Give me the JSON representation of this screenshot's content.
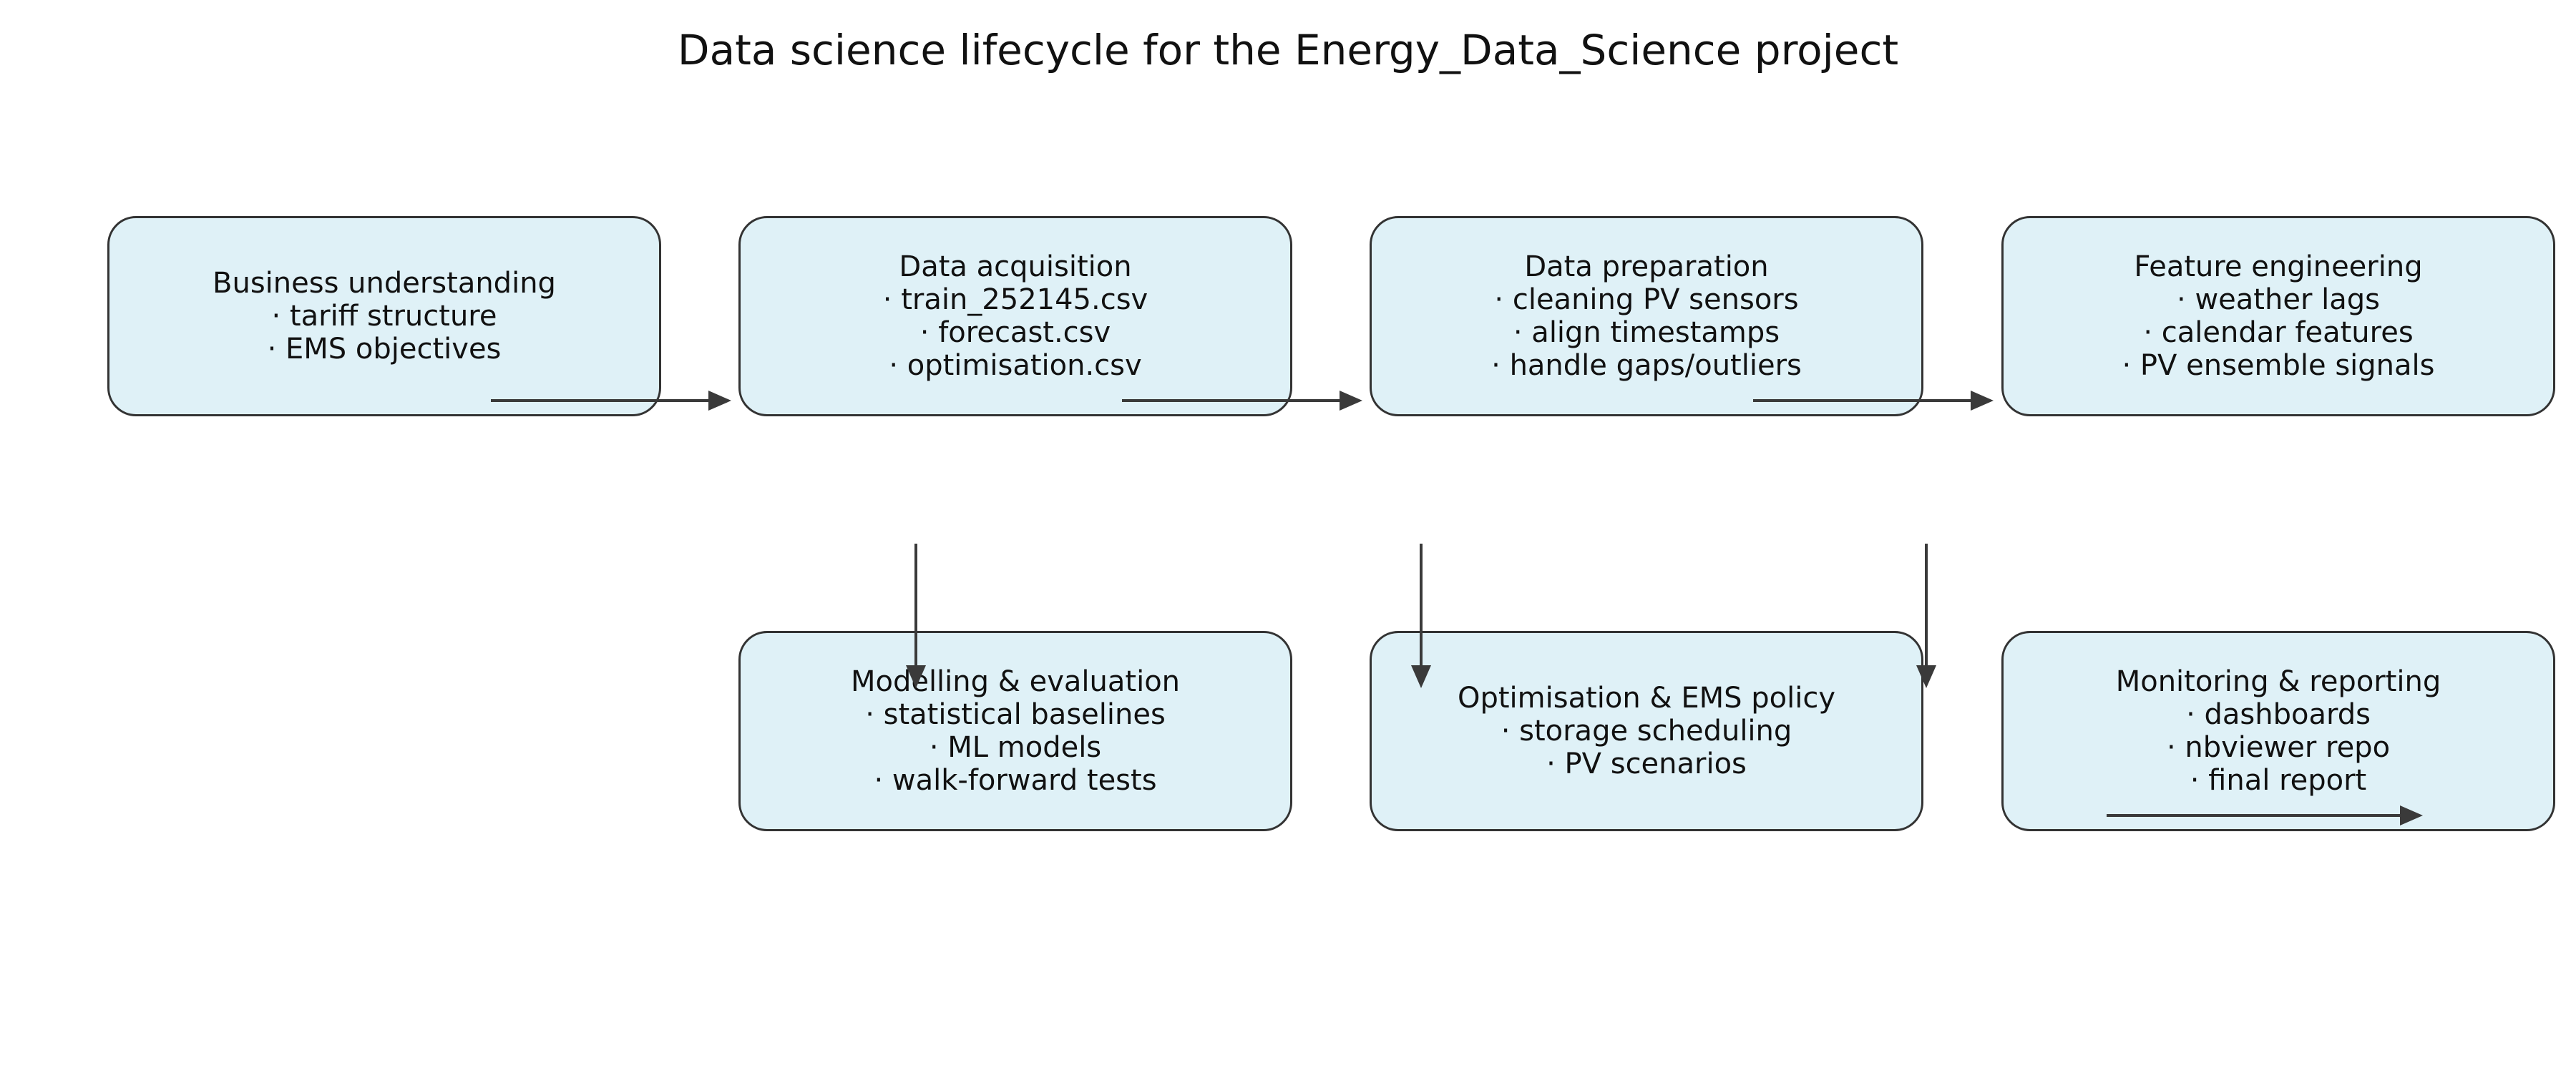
{
  "title": "Data science lifecycle for the Energy_Data_Science project",
  "colors": {
    "box_fill": "#dff1f7",
    "box_border": "#333333",
    "arrow": "#3a3a3a",
    "text": "#111111",
    "background": "#ffffff"
  },
  "stages": [
    {
      "title": "Business understanding",
      "points": [
        "· tariff structure",
        "· EMS objectives"
      ]
    },
    {
      "title": "Data acquisition",
      "points": [
        "· train_252145.csv",
        "· forecast.csv",
        "· optimisation.csv"
      ]
    },
    {
      "title": "Data preparation",
      "points": [
        "· cleaning PV sensors",
        "· align timestamps",
        "· handle gaps/outliers"
      ]
    },
    {
      "title": "Feature engineering",
      "points": [
        "· weather lags",
        "· calendar features",
        "· PV ensemble signals"
      ]
    },
    {
      "title": "Modelling & evaluation",
      "points": [
        "· statistical baselines",
        "· ML models",
        "· walk-forward tests"
      ]
    },
    {
      "title": "Optimisation & EMS policy",
      "points": [
        "· storage scheduling",
        "· PV scenarios"
      ]
    },
    {
      "title": "Monitoring & reporting",
      "points": [
        "· dashboards",
        "· nbviewer repo",
        "· final report"
      ]
    }
  ]
}
